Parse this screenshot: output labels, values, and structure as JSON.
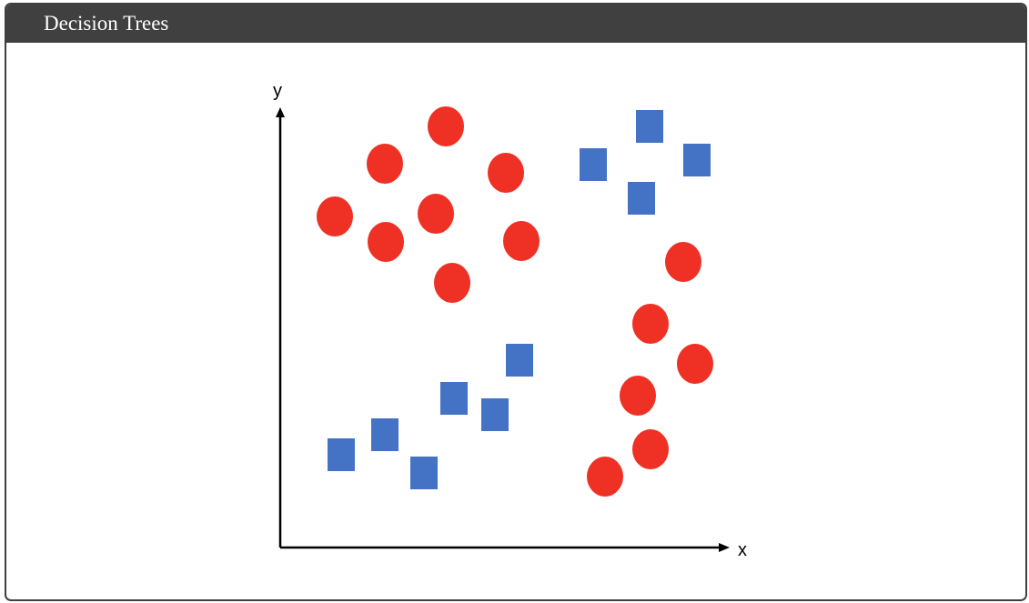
{
  "header": {
    "title": "Decision Trees"
  },
  "plot": {
    "x_label": "x",
    "y_label": "y",
    "axis_color": "#000000",
    "circle_color": "#ee3124",
    "square_color": "#4472c4",
    "circles": [
      [
        490,
        139
      ],
      [
        423,
        180
      ],
      [
        556,
        190
      ],
      [
        368,
        238
      ],
      [
        479,
        235
      ],
      [
        424,
        266
      ],
      [
        573,
        265
      ],
      [
        497,
        311
      ],
      [
        751,
        288
      ],
      [
        715,
        356
      ],
      [
        764,
        400
      ],
      [
        701,
        435
      ],
      [
        715,
        494
      ],
      [
        665,
        524
      ]
    ],
    "squares": [
      [
        714,
        139
      ],
      [
        652,
        181
      ],
      [
        766,
        176
      ],
      [
        705,
        218
      ],
      [
        571,
        396
      ],
      [
        499,
        438
      ],
      [
        544,
        456
      ],
      [
        423,
        478
      ],
      [
        375,
        500
      ],
      [
        466,
        520
      ]
    ]
  }
}
